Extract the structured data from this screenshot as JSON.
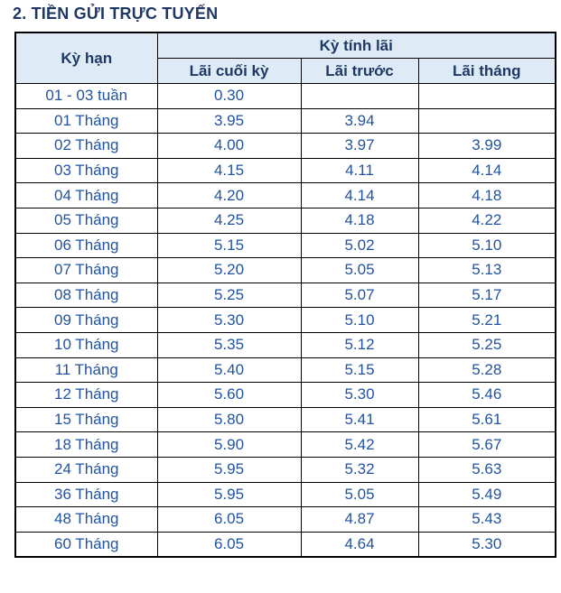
{
  "title": "2. TIỀN GỬI TRỰC TUYẾN",
  "table": {
    "term_header": "Kỳ hạn",
    "group_header": "Kỳ tính lãi",
    "sub_headers": [
      "Lãi cuối kỳ",
      "Lãi trước",
      "Lãi tháng"
    ],
    "rows": [
      {
        "term": "01 - 03 tuần",
        "end": "0.30",
        "pre": "",
        "month": ""
      },
      {
        "term": "01 Tháng",
        "end": "3.95",
        "pre": "3.94",
        "month": ""
      },
      {
        "term": "02 Tháng",
        "end": "4.00",
        "pre": "3.97",
        "month": "3.99"
      },
      {
        "term": "03 Tháng",
        "end": "4.15",
        "pre": "4.11",
        "month": "4.14"
      },
      {
        "term": "04 Tháng",
        "end": "4.20",
        "pre": "4.14",
        "month": "4.18"
      },
      {
        "term": "05 Tháng",
        "end": "4.25",
        "pre": "4.18",
        "month": "4.22"
      },
      {
        "term": "06 Tháng",
        "end": "5.15",
        "pre": "5.02",
        "month": "5.10"
      },
      {
        "term": "07 Tháng",
        "end": "5.20",
        "pre": "5.05",
        "month": "5.13"
      },
      {
        "term": "08 Tháng",
        "end": "5.25",
        "pre": "5.07",
        "month": "5.17"
      },
      {
        "term": "09 Tháng",
        "end": "5.30",
        "pre": "5.10",
        "month": "5.21"
      },
      {
        "term": "10 Tháng",
        "end": "5.35",
        "pre": "5.12",
        "month": "5.25"
      },
      {
        "term": "11 Tháng",
        "end": "5.40",
        "pre": "5.15",
        "month": "5.28"
      },
      {
        "term": "12 Tháng",
        "end": "5.60",
        "pre": "5.30",
        "month": "5.46"
      },
      {
        "term": "15 Tháng",
        "end": "5.80",
        "pre": "5.41",
        "month": "5.61"
      },
      {
        "term": "18 Tháng",
        "end": "5.90",
        "pre": "5.42",
        "month": "5.67"
      },
      {
        "term": "24 Tháng",
        "end": "5.95",
        "pre": "5.32",
        "month": "5.63"
      },
      {
        "term": "36 Tháng",
        "end": "5.95",
        "pre": "5.05",
        "month": "5.49"
      },
      {
        "term": "48 Tháng",
        "end": "6.05",
        "pre": "4.87",
        "month": "5.43"
      },
      {
        "term": "60 Tháng",
        "end": "6.05",
        "pre": "4.64",
        "month": "5.30"
      }
    ]
  },
  "colors": {
    "header_bg": "#DEEBF7",
    "header_text": "#1F3864",
    "data_text": "#2253A0",
    "border": "#000000",
    "page_bg": "#FFFFFF"
  }
}
